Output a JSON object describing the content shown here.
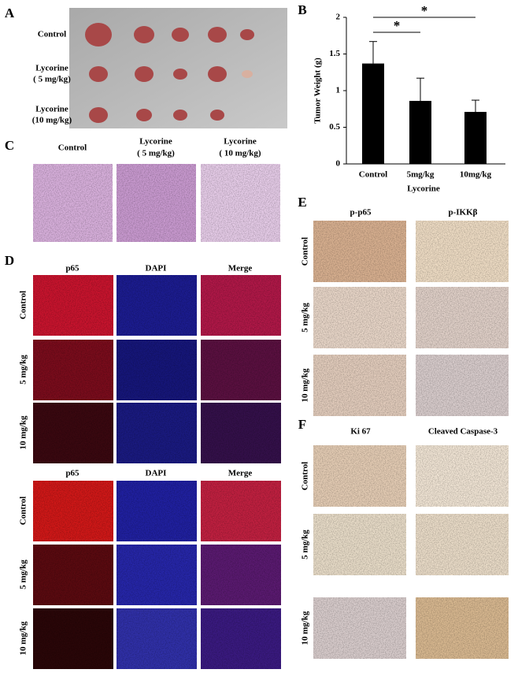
{
  "panels": {
    "A": {
      "label": "A",
      "rows": [
        [
          "Control"
        ],
        [
          "Lycorine",
          "( 5 mg/kg)"
        ],
        [
          "Lycorine",
          "(10 mg/kg)"
        ]
      ]
    },
    "C": {
      "label": "C",
      "columns": [
        [
          "Control"
        ],
        [
          "Lycorine",
          "( 5 mg/kg)"
        ],
        [
          "Lycorine",
          "( 10 mg/kg)"
        ]
      ]
    },
    "D": {
      "label": "D",
      "grids": [
        {
          "columns": [
            "p65",
            "DAPI",
            "Merge"
          ],
          "rows": [
            "Control",
            "5 mg/kg",
            "10 mg/kg"
          ]
        },
        {
          "columns": [
            "p65",
            "DAPI",
            "Merge"
          ],
          "rows": [
            "Control",
            "5 mg/kg",
            "10 mg/kg"
          ]
        }
      ]
    },
    "E": {
      "label": "E",
      "columns": [
        "p-p65",
        "p-IKKβ"
      ],
      "rows": [
        "Control",
        "5 mg/kg",
        "10 mg/kg"
      ]
    },
    "F": {
      "label": "F",
      "columns": [
        "Ki 67",
        "Cleaved Caspase-3"
      ],
      "rows": [
        "Control",
        "5 mg/kg",
        "10 mg/kg"
      ]
    }
  },
  "chart_data": {
    "type": "bar",
    "panel_label": "B",
    "ylabel": "Tumor Weight (g)",
    "xlabel": "Lycorine",
    "categories": [
      "Control",
      "5mg/kg",
      "10mg/kg"
    ],
    "values": [
      1.37,
      0.86,
      0.71
    ],
    "errors": [
      0.3,
      0.31,
      0.16
    ],
    "color": "#000000",
    "ylim": [
      0,
      2
    ],
    "yticks": [
      0,
      0.5,
      1,
      1.5,
      2
    ],
    "annotations": [
      "*",
      "*"
    ]
  }
}
